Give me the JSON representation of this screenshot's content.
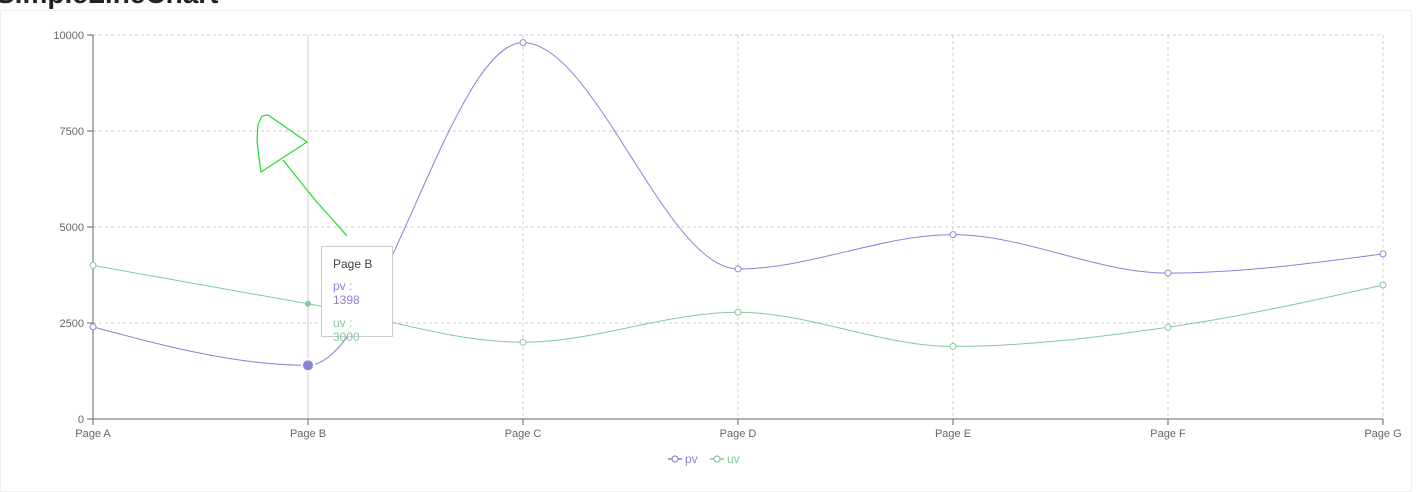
{
  "page": {
    "heading": "SimpleLineChart"
  },
  "chart_data": {
    "type": "line",
    "title": "SimpleLineChart",
    "categories": [
      "Page A",
      "Page B",
      "Page C",
      "Page D",
      "Page E",
      "Page F",
      "Page G"
    ],
    "series": [
      {
        "name": "pv",
        "color": "#8884d8",
        "values": [
          2400,
          1398,
          9800,
          3908,
          4800,
          3800,
          4300
        ]
      },
      {
        "name": "uv",
        "color": "#82ca9d",
        "values": [
          4000,
          3000,
          2000,
          2780,
          1890,
          2390,
          3490
        ]
      }
    ],
    "ylim": [
      0,
      10000
    ],
    "yticks": [
      0,
      2500,
      5000,
      7500,
      10000
    ],
    "grid": true,
    "legend": "bottom-center",
    "active_category": "Page B"
  },
  "tooltip": {
    "title": "Page B",
    "rows": [
      {
        "name": "pv",
        "value": "1398",
        "color": "#8884d8"
      },
      {
        "name": "uv",
        "value": "3000",
        "color": "#82ca9d"
      }
    ]
  },
  "annotation": {
    "color": "#22dd22",
    "icon": "hand-drawn-arrow-icon"
  }
}
